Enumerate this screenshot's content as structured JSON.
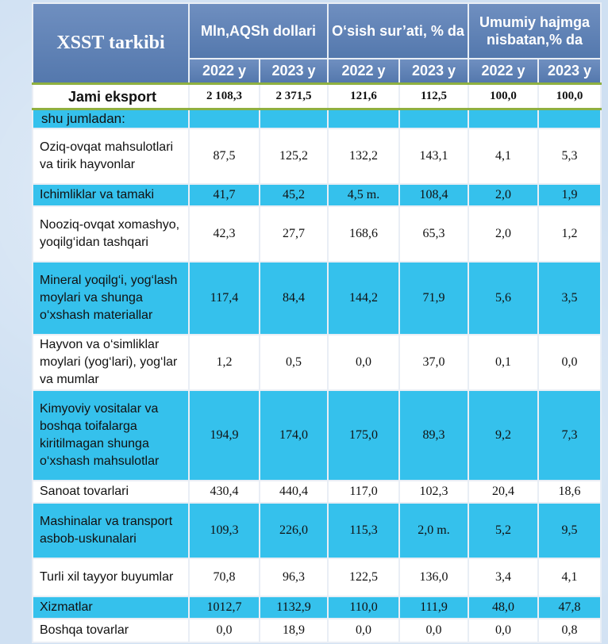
{
  "header": {
    "title": "XSST tarkibi",
    "group1": "Mln,AQSh dollari",
    "group2": "O‘sish sur’ati, % da",
    "group3": "Umumiy hajmga nisbatan,% da",
    "years": [
      "2022 y",
      "2023 y",
      "2022 y",
      "2023 y",
      "2022 y",
      "2023 y"
    ]
  },
  "total": {
    "label": "Jami eksport",
    "values": [
      "2 108,3",
      "2 371,5",
      "121,6",
      "112,5",
      "100,0",
      "100,0"
    ]
  },
  "subheader": "shu jumladan:",
  "rows": [
    {
      "label": "Oziq-ovqat mahsulotlari va tirik hayvonlar",
      "values": [
        "87,5",
        "125,2",
        "132,2",
        "143,1",
        "4,1",
        "5,3"
      ]
    },
    {
      "label": "Ichimliklar va tamaki",
      "values": [
        "41,7",
        "45,2",
        "4,5 m.",
        "108,4",
        "2,0",
        "1,9"
      ]
    },
    {
      "label": "Nooziq-ovqat xomashyo, yoqilg‘idan tashqari",
      "values": [
        "42,3",
        "27,7",
        "168,6",
        "65,3",
        "2,0",
        "1,2"
      ]
    },
    {
      "label": "Mineral yoqilg‘i, yog‘lash moylari va shunga o‘xshash materiallar",
      "values": [
        "117,4",
        "84,4",
        "144,2",
        "71,9",
        "5,6",
        "3,5"
      ]
    },
    {
      "label": "Hayvon va o‘simliklar moylari (yog‘lari), yog‘lar va mumlar",
      "values": [
        "1,2",
        "0,5",
        "0,0",
        "37,0",
        "0,1",
        "0,0"
      ]
    },
    {
      "label": "Kimyoviy vositalar va boshqa toifalarga kiritilmagan shunga o‘xshash mahsulotlar",
      "values": [
        "194,9",
        "174,0",
        "175,0",
        "89,3",
        "9,2",
        "7,3"
      ]
    },
    {
      "label": "Sanoat tovarlari",
      "values": [
        "430,4",
        "440,4",
        "117,0",
        "102,3",
        "20,4",
        "18,6"
      ]
    },
    {
      "label": "Mashinalar va transport asbob-uskunalari",
      "values": [
        "109,3",
        "226,0",
        "115,3",
        "2,0 m.",
        "5,2",
        "9,5"
      ]
    },
    {
      "label": "Turli xil tayyor buyumlar",
      "values": [
        "70,8",
        "96,3",
        "122,5",
        "136,0",
        "3,4",
        "4,1"
      ]
    },
    {
      "label": "Xizmatlar",
      "values": [
        "1012,7",
        "1132,9",
        "110,0",
        "111,9",
        "48,0",
        "47,8"
      ]
    },
    {
      "label": "Boshqa tovarlar",
      "values": [
        "0,0",
        "18,9",
        "0,0",
        "0,0",
        "0,0",
        "0,8"
      ]
    }
  ]
}
